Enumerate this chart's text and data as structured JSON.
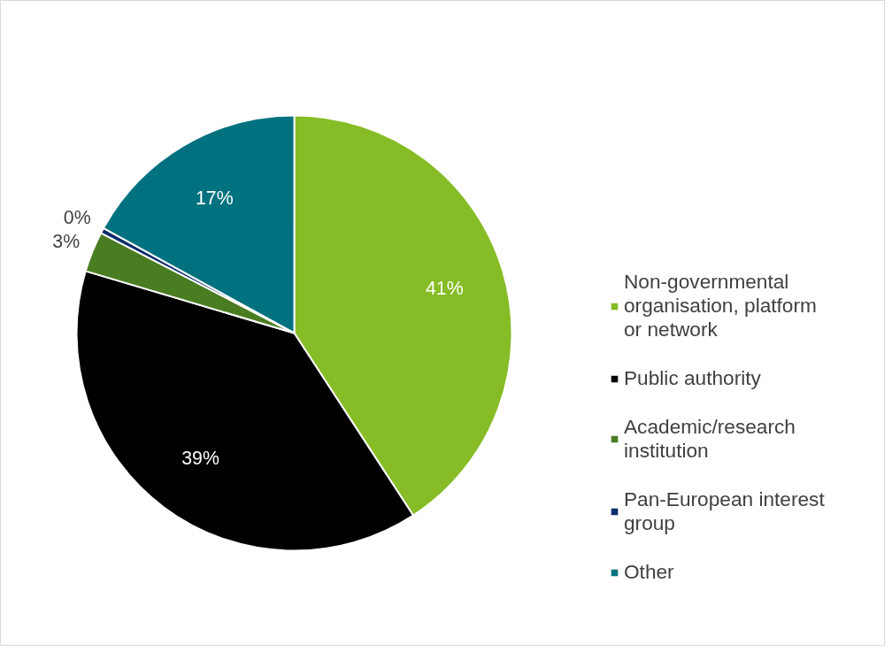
{
  "chart_data": {
    "type": "pie",
    "categories": [
      "Non-governmental organisation, platform or network",
      "Public authority",
      "Academic/research institution",
      "Pan-European interest group",
      "Other"
    ],
    "values": [
      40.8,
      38.8,
      3,
      0.4,
      17
    ],
    "value_labels": [
      "41%",
      "39%",
      "3%",
      "0%",
      "17%"
    ],
    "colors": [
      "#86bc25",
      "#000000",
      "#4a7c22",
      "#0c2d6b",
      "#00717f"
    ],
    "legend": "right"
  }
}
